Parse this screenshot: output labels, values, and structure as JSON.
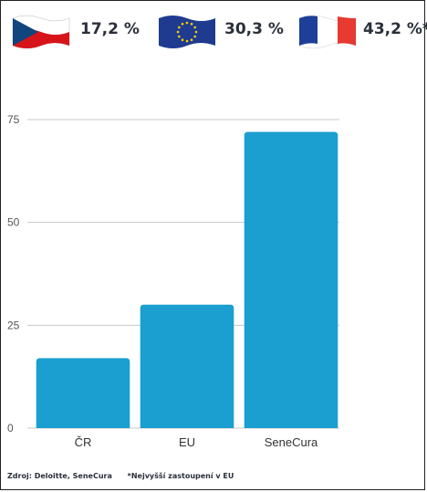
{
  "header": {
    "flags": [
      {
        "country": "CZ",
        "icon": "czech-flag-icon",
        "pct": "17,2 %"
      },
      {
        "country": "EU",
        "icon": "eu-flag-icon",
        "pct": "30,3 %"
      },
      {
        "country": "FR",
        "icon": "french-flag-icon",
        "pct": "43,2 %*"
      }
    ]
  },
  "colors": {
    "bar": "#1a9fd0",
    "grid": "#c8c8c8",
    "text": "#2a2f3a"
  },
  "chart_data": {
    "type": "bar",
    "categories": [
      "ČR",
      "EU",
      "SeneCura"
    ],
    "values": [
      17,
      30,
      72
    ],
    "ylim": [
      0,
      75
    ],
    "yticks": [
      0,
      25,
      50,
      75
    ],
    "grid": true,
    "title": "",
    "xlabel": "",
    "ylabel": ""
  },
  "footer": {
    "source": "Zdroj: Deloitte, SeneCura",
    "note": "*Nejvyšší zastoupení v EU"
  }
}
